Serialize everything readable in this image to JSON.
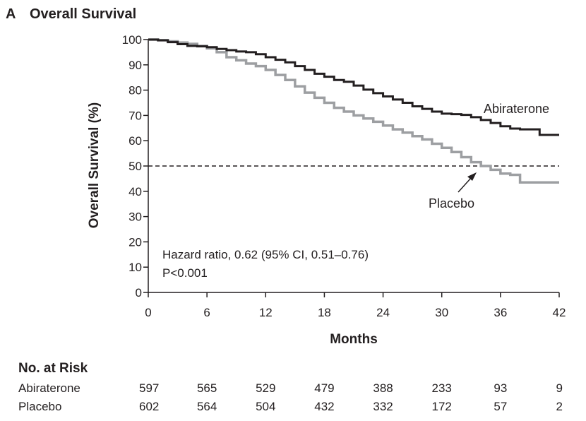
{
  "figure": {
    "panel_letter": "A",
    "panel_title": "Overall Survival"
  },
  "chart_data": {
    "type": "line",
    "title": "Overall Survival",
    "xlabel": "Months",
    "ylabel": "Overall Survival (%)",
    "xlim": [
      0,
      42
    ],
    "ylim": [
      0,
      100
    ],
    "x_ticks": [
      0,
      6,
      12,
      18,
      24,
      30,
      36,
      42
    ],
    "y_ticks": [
      0,
      10,
      20,
      30,
      40,
      50,
      60,
      70,
      80,
      90,
      100
    ],
    "grid": false,
    "reference_line": {
      "y": 50,
      "style": "dashed"
    },
    "series": [
      {
        "name": "Abiraterone",
        "color": "#231f20",
        "points": [
          [
            0,
            100
          ],
          [
            1,
            99.7
          ],
          [
            2,
            99
          ],
          [
            3,
            98.2
          ],
          [
            4,
            97.5
          ],
          [
            5,
            97.3
          ],
          [
            6,
            97
          ],
          [
            7,
            96.3
          ],
          [
            8,
            95.8
          ],
          [
            9,
            95.3
          ],
          [
            10,
            95
          ],
          [
            11,
            94.2
          ],
          [
            12,
            93
          ],
          [
            13,
            92
          ],
          [
            14,
            91
          ],
          [
            15,
            89.5
          ],
          [
            16,
            88
          ],
          [
            17,
            86.5
          ],
          [
            18,
            85.3
          ],
          [
            19,
            84
          ],
          [
            20,
            83.3
          ],
          [
            21,
            81.8
          ],
          [
            22,
            80.2
          ],
          [
            23,
            78.8
          ],
          [
            24,
            77.5
          ],
          [
            25,
            76.3
          ],
          [
            26,
            75
          ],
          [
            27,
            73.6
          ],
          [
            28,
            72.6
          ],
          [
            29,
            71.5
          ],
          [
            30,
            70.7
          ],
          [
            31,
            70.5
          ],
          [
            32,
            70.2
          ],
          [
            33,
            69.3
          ],
          [
            34,
            68.2
          ],
          [
            35,
            67
          ],
          [
            36,
            65.7
          ],
          [
            37,
            64.8
          ],
          [
            38,
            64.5
          ],
          [
            39,
            64.5
          ],
          [
            40,
            62.3
          ],
          [
            41,
            62.3
          ],
          [
            42,
            62.3
          ]
        ]
      },
      {
        "name": "Placebo",
        "color": "#9d9fa2",
        "points": [
          [
            0,
            100
          ],
          [
            1,
            99.8
          ],
          [
            2,
            99.3
          ],
          [
            3,
            98.8
          ],
          [
            4,
            98.3
          ],
          [
            5,
            97.5
          ],
          [
            6,
            96.5
          ],
          [
            7,
            95
          ],
          [
            8,
            93
          ],
          [
            9,
            91.8
          ],
          [
            10,
            90.5
          ],
          [
            11,
            89.5
          ],
          [
            12,
            88
          ],
          [
            13,
            86
          ],
          [
            14,
            84
          ],
          [
            15,
            81.5
          ],
          [
            16,
            79
          ],
          [
            17,
            77
          ],
          [
            18,
            75
          ],
          [
            19,
            73
          ],
          [
            20,
            71.5
          ],
          [
            21,
            70
          ],
          [
            22,
            68.8
          ],
          [
            23,
            67.5
          ],
          [
            24,
            66
          ],
          [
            25,
            64.5
          ],
          [
            26,
            63.2
          ],
          [
            27,
            61.8
          ],
          [
            28,
            60.5
          ],
          [
            29,
            58.8
          ],
          [
            30,
            57.2
          ],
          [
            31,
            55.5
          ],
          [
            32,
            53.5
          ],
          [
            33,
            51.5
          ],
          [
            34,
            50
          ],
          [
            35,
            48.5
          ],
          [
            36,
            47
          ],
          [
            37,
            46.5
          ],
          [
            38,
            43.5
          ],
          [
            39,
            43.5
          ],
          [
            40,
            43.5
          ],
          [
            41,
            43.5
          ],
          [
            42,
            43.5
          ]
        ]
      }
    ],
    "annotations": {
      "hazard_ratio": "Hazard ratio, 0.62 (95% CI, 0.51–0.76)",
      "p_value": "P<0.001",
      "abiraterone_label": "Abiraterone",
      "placebo_label": "Placebo"
    }
  },
  "risk_table": {
    "header": "No. at Risk",
    "rows": [
      {
        "label": "Abiraterone",
        "values": [
          "597",
          "565",
          "529",
          "479",
          "388",
          "233",
          "93",
          "9"
        ]
      },
      {
        "label": "Placebo",
        "values": [
          "602",
          "564",
          "504",
          "432",
          "332",
          "172",
          "57",
          "2"
        ]
      }
    ]
  }
}
